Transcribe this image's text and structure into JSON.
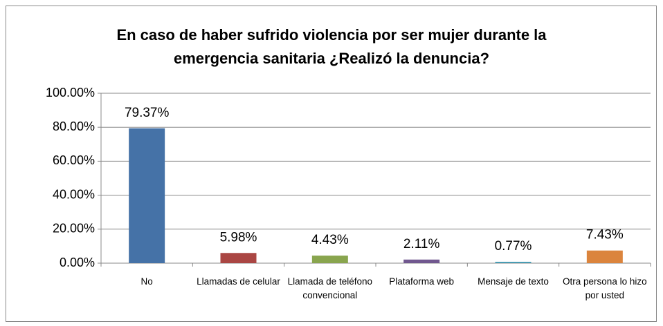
{
  "chart_data": {
    "type": "bar",
    "title": "En caso de haber sufrido violencia por ser mujer durante la emergencia sanitaria ¿Realizó la denuncia?",
    "categories": [
      "No",
      "Llamadas de celular",
      "Llamada de teléfono convencional",
      "Plataforma web",
      "Mensaje de texto",
      "Otra persona lo hizo por usted"
    ],
    "values": [
      79.37,
      5.98,
      4.43,
      2.11,
      0.77,
      7.43
    ],
    "value_labels": [
      "79.37%",
      "5.98%",
      "4.43%",
      "2.11%",
      "0.77%",
      "7.43%"
    ],
    "colors": [
      "#4572a7",
      "#aa4643",
      "#89a54e",
      "#71588f",
      "#4198af",
      "#db843d"
    ],
    "ylim": [
      0,
      100
    ],
    "yticks": [
      {
        "value": 0,
        "label": "0.00%"
      },
      {
        "value": 20,
        "label": "20.00%"
      },
      {
        "value": 40,
        "label": "40.00%"
      },
      {
        "value": 60,
        "label": "60.00%"
      },
      {
        "value": 80,
        "label": "80.00%"
      },
      {
        "value": 100,
        "label": "100.00%"
      }
    ],
    "grid": true
  }
}
